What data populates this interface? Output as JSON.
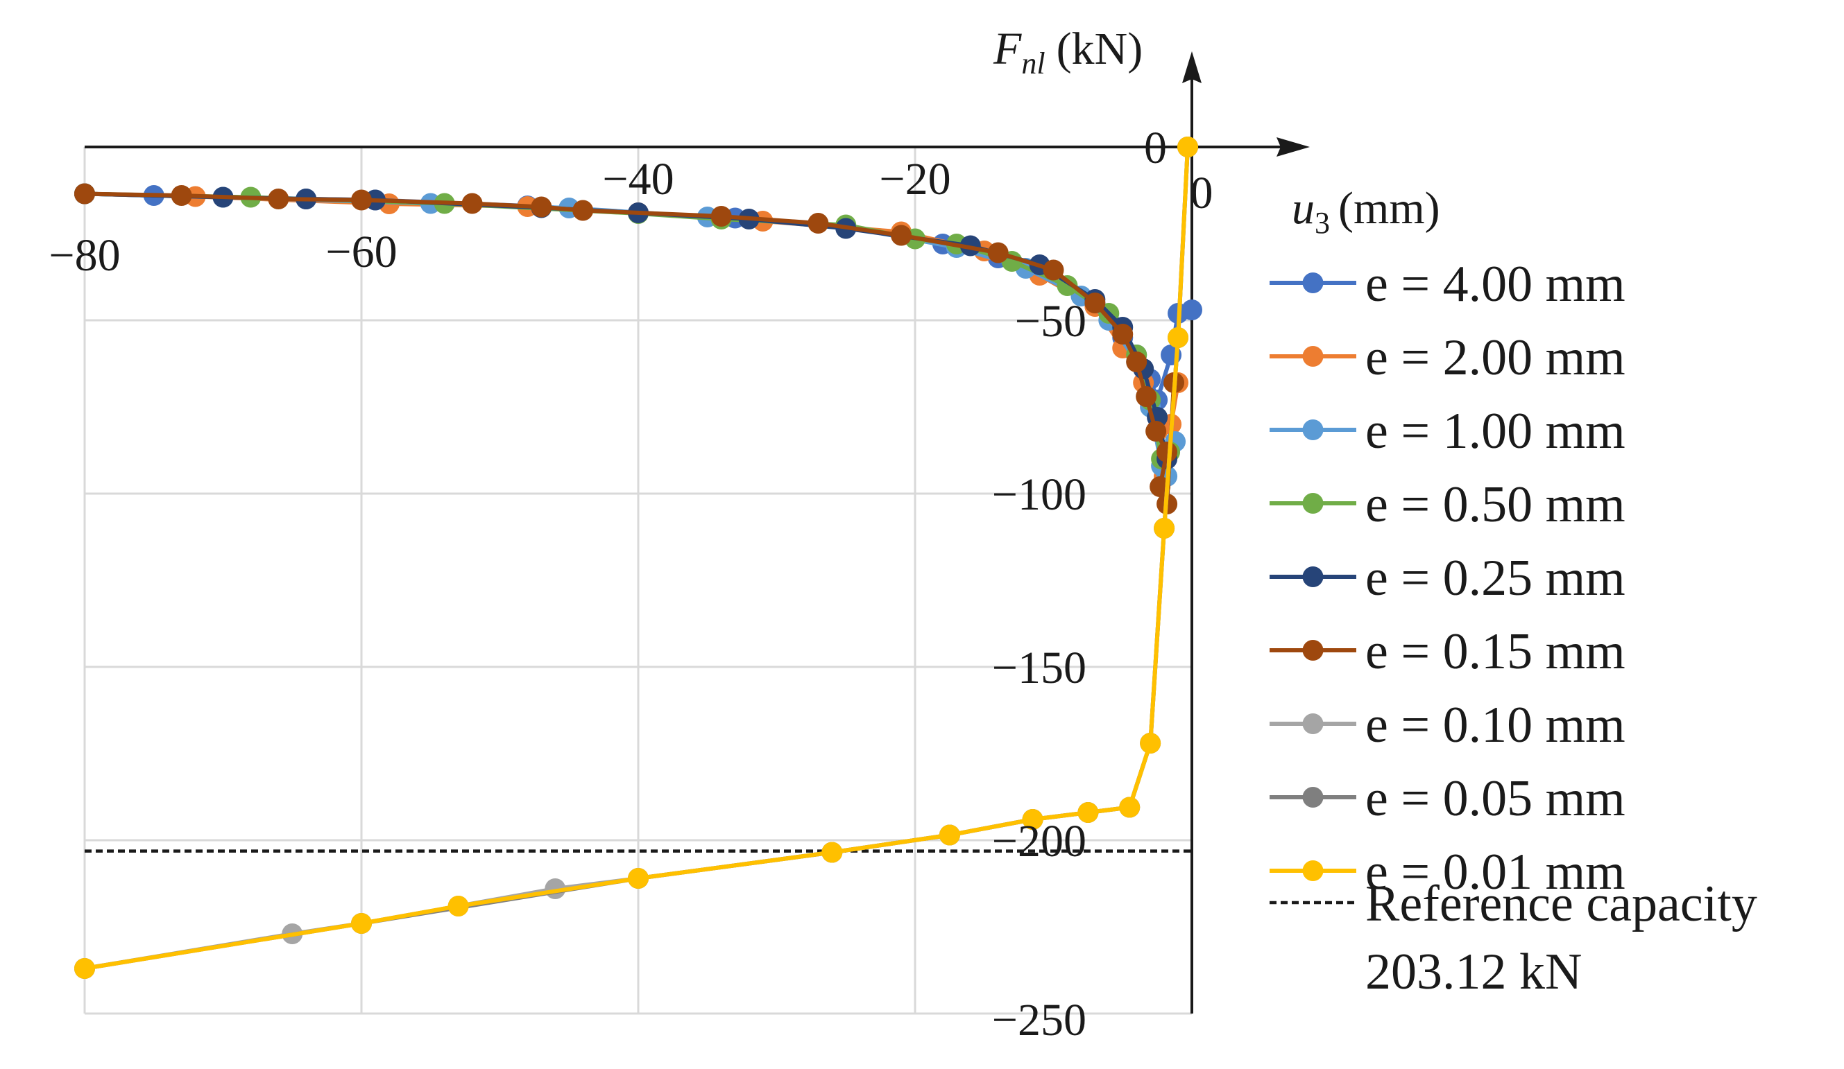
{
  "chart_data": {
    "type": "line",
    "x_label": "u",
    "x_label_sub": "3",
    "x_label_unit": "(mm)",
    "y_label": "F",
    "y_label_sub": "nl",
    "y_label_unit": "(kN)",
    "x_range": [
      -80,
      0
    ],
    "y_range": [
      -250,
      0
    ],
    "x_ticks": [
      {
        "value": -80,
        "label": "−80"
      },
      {
        "value": -60,
        "label": "−60"
      },
      {
        "value": -40,
        "label": "−40"
      },
      {
        "value": -20,
        "label": "−20"
      },
      {
        "value": 0,
        "label": "0"
      }
    ],
    "y_ticks": [
      {
        "value": 0,
        "label": "0"
      },
      {
        "value": -50,
        "label": "−50"
      },
      {
        "value": -100,
        "label": "−100"
      },
      {
        "value": -150,
        "label": "−150"
      },
      {
        "value": -200,
        "label": "−200"
      },
      {
        "value": -250,
        "label": "−250"
      }
    ],
    "grid": true,
    "legend_position": "right",
    "series": [
      {
        "name": "e = 4.00 mm",
        "color": "#4472C4",
        "points": [
          [
            -80,
            -13.5
          ],
          [
            -75,
            -14
          ],
          [
            -64,
            -15
          ],
          [
            -59,
            -15.3
          ],
          [
            -48,
            -17
          ],
          [
            -40,
            -19
          ],
          [
            -33,
            -20.5
          ],
          [
            -25,
            -23
          ],
          [
            -18,
            -28
          ],
          [
            -14,
            -32
          ],
          [
            -11,
            -36
          ],
          [
            -7,
            -45
          ],
          [
            -5,
            -55
          ],
          [
            -4,
            -60
          ],
          [
            -3,
            -67
          ],
          [
            -2.5,
            -73
          ],
          [
            -1.5,
            -60
          ],
          [
            -1,
            -48
          ],
          [
            0,
            -47
          ]
        ]
      },
      {
        "name": "e = 2.00 mm",
        "color": "#ED7D31",
        "points": [
          [
            -80,
            -13.5
          ],
          [
            -72,
            -14.3
          ],
          [
            -58,
            -16.4
          ],
          [
            -48,
            -17.2
          ],
          [
            -40,
            -19
          ],
          [
            -31,
            -21.4
          ],
          [
            -21,
            -24.5
          ],
          [
            -15,
            -30
          ],
          [
            -11,
            -37
          ],
          [
            -7,
            -46
          ],
          [
            -5,
            -58
          ],
          [
            -3.5,
            -68
          ],
          [
            -2.5,
            -82
          ],
          [
            -2,
            -95
          ],
          [
            -1.5,
            -80
          ],
          [
            -1,
            -68
          ]
        ]
      },
      {
        "name": "e = 1.00 mm",
        "color": "#5B9BD5",
        "points": [
          [
            -80,
            -13.5
          ],
          [
            -70,
            -14.5
          ],
          [
            -55,
            -16.3
          ],
          [
            -45,
            -17.6
          ],
          [
            -35,
            -20.2
          ],
          [
            -25,
            -23
          ],
          [
            -17,
            -29
          ],
          [
            -12,
            -35
          ],
          [
            -8,
            -43
          ],
          [
            -6,
            -50
          ],
          [
            -4,
            -62
          ],
          [
            -3,
            -75
          ],
          [
            -2.2,
            -92
          ],
          [
            -1.8,
            -95
          ],
          [
            -1.2,
            -85
          ]
        ]
      },
      {
        "name": "e = 0.50 mm",
        "color": "#70AD47",
        "points": [
          [
            -80,
            -13.5
          ],
          [
            -68,
            -14.5
          ],
          [
            -54,
            -16.3
          ],
          [
            -40,
            -19.2
          ],
          [
            -34,
            -20.8
          ],
          [
            -25,
            -22.5
          ],
          [
            -20,
            -26.5
          ],
          [
            -17,
            -28
          ],
          [
            -13,
            -33
          ],
          [
            -9,
            -40
          ],
          [
            -6,
            -48
          ],
          [
            -4,
            -60
          ],
          [
            -3,
            -73
          ],
          [
            -2.2,
            -90
          ],
          [
            -1.6,
            -88
          ]
        ]
      },
      {
        "name": "e = 0.25 mm",
        "color": "#264478",
        "points": [
          [
            -80,
            -13.5
          ],
          [
            -70,
            -14.5
          ],
          [
            -64,
            -15
          ],
          [
            -59,
            -15.3
          ],
          [
            -47,
            -17.5
          ],
          [
            -40,
            -19
          ],
          [
            -32,
            -20.8
          ],
          [
            -25,
            -23.5
          ],
          [
            -16,
            -28.5
          ],
          [
            -11,
            -34
          ],
          [
            -7,
            -44
          ],
          [
            -5,
            -52
          ],
          [
            -3.5,
            -64
          ],
          [
            -2.5,
            -78
          ],
          [
            -1.8,
            -90
          ]
        ]
      },
      {
        "name": "e = 0.15 mm",
        "color": "#9E480E",
        "points": [
          [
            -80,
            -13.5
          ],
          [
            -73,
            -14
          ],
          [
            -66,
            -15
          ],
          [
            -60,
            -15.3
          ],
          [
            -52,
            -16.3
          ],
          [
            -47,
            -17.3
          ],
          [
            -44,
            -18.3
          ],
          [
            -34,
            -20
          ],
          [
            -27,
            -22
          ],
          [
            -21,
            -25.5
          ],
          [
            -14,
            -30.5
          ],
          [
            -10,
            -35.5
          ],
          [
            -7,
            -45
          ],
          [
            -5,
            -54
          ],
          [
            -4,
            -62
          ],
          [
            -3.3,
            -72
          ],
          [
            -2.6,
            -82
          ],
          [
            -1.8,
            -88
          ],
          [
            -2.3,
            -98
          ],
          [
            -1.8,
            -103
          ],
          [
            -1.3,
            -68
          ]
        ]
      },
      {
        "name": "e = 0.10 mm",
        "color": "#A5A5A5",
        "points": [
          [
            -80,
            -237
          ],
          [
            -65,
            -227
          ],
          [
            -60,
            -224
          ],
          [
            -53,
            -219
          ],
          [
            -46,
            -214
          ],
          [
            -40,
            -211
          ],
          [
            -26,
            -203.5
          ],
          [
            -17.5,
            -198.5
          ],
          [
            -11.5,
            -194
          ],
          [
            -7.5,
            -192
          ],
          [
            -4.5,
            -190.5
          ],
          [
            -3,
            -172
          ],
          [
            -2,
            -110
          ],
          [
            -1,
            -55
          ],
          [
            -0.3,
            0
          ]
        ]
      },
      {
        "name": "e = 0.05 mm",
        "color": "#7F7F7F",
        "points": [
          [
            -80,
            -237
          ],
          [
            -60,
            -224
          ],
          [
            -40,
            -211
          ],
          [
            -26,
            -203.5
          ],
          [
            -17.5,
            -198.5
          ],
          [
            -11.5,
            -194
          ],
          [
            -7.5,
            -192
          ],
          [
            -4.5,
            -190.5
          ],
          [
            -3,
            -172
          ],
          [
            -2,
            -110
          ],
          [
            -1,
            -55
          ],
          [
            -0.3,
            0
          ]
        ]
      },
      {
        "name": "e = 0.01 mm",
        "color": "#FFC000",
        "points": [
          [
            -80,
            -237
          ],
          [
            -60,
            -224
          ],
          [
            -53,
            -219
          ],
          [
            -40,
            -211
          ],
          [
            -26,
            -203.5
          ],
          [
            -17.5,
            -198.5
          ],
          [
            -11.5,
            -194
          ],
          [
            -7.5,
            -192
          ],
          [
            -4.5,
            -190.5
          ],
          [
            -3,
            -172
          ],
          [
            -2,
            -110
          ],
          [
            -1,
            -55
          ],
          [
            -0.3,
            0
          ]
        ]
      }
    ],
    "reference": {
      "name": "Reference capacity",
      "name_line2": "203.12 kN",
      "value": -203.12,
      "color": "#1a1a1a"
    }
  }
}
